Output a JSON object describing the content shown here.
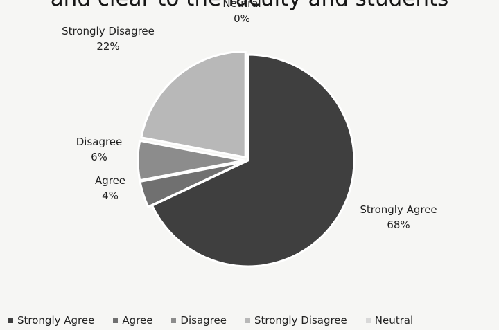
{
  "chart_data": {
    "type": "pie",
    "title": "and clear to the faculty and students",
    "categories": [
      "Strongly Agree",
      "Agree",
      "Disagree",
      "Strongly Disagree",
      "Neutral"
    ],
    "values": [
      68,
      4,
      6,
      22,
      0
    ],
    "value_suffix": "%",
    "legend_position": "bottom",
    "colors": [
      "#3f3f3f",
      "#707070",
      "#8c8c8c",
      "#b8b8b8",
      "#d8d8d8"
    ]
  }
}
